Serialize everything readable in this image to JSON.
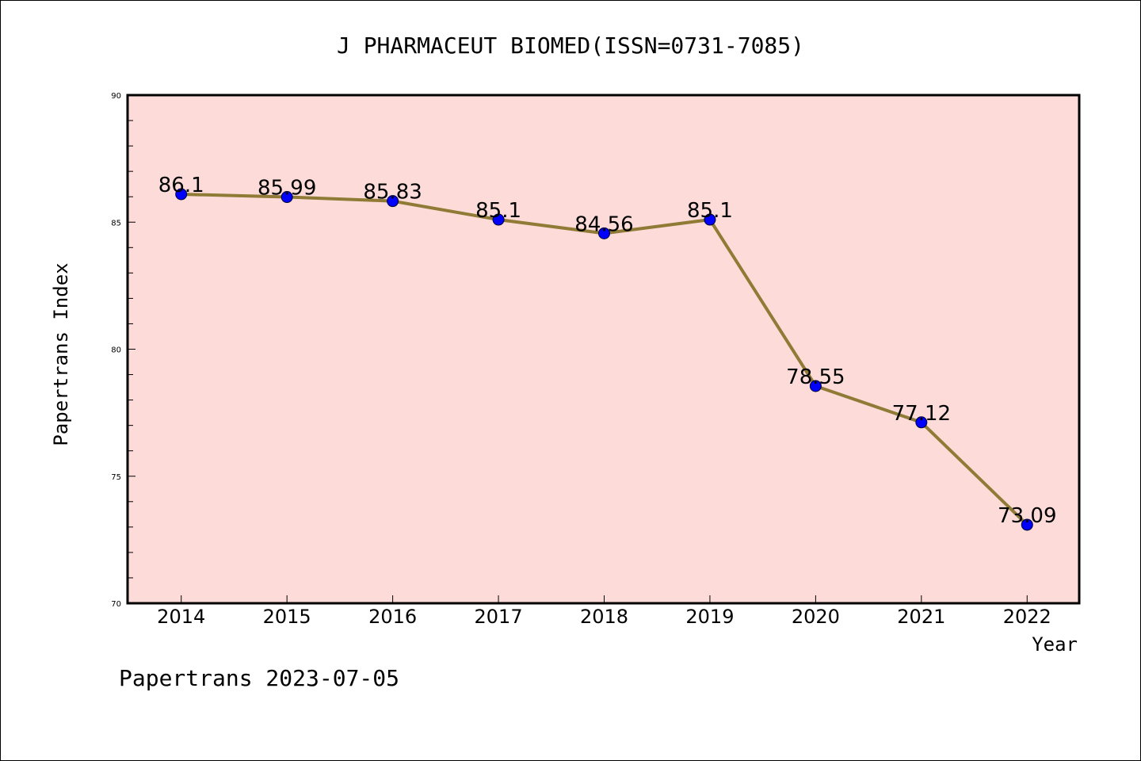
{
  "chart_data": {
    "type": "line",
    "title": "J PHARMACEUT BIOMED(ISSN=0731-7085)",
    "xlabel": "Year",
    "ylabel": "Papertrans Index",
    "categories": [
      "2014",
      "2015",
      "2016",
      "2017",
      "2018",
      "2019",
      "2020",
      "2021",
      "2022"
    ],
    "values": [
      86.1,
      85.99,
      85.83,
      85.1,
      84.56,
      85.1,
      78.55,
      77.12,
      73.09
    ],
    "data_labels": [
      "86.1",
      "85.99",
      "85.83",
      "85.1",
      "84.56",
      "85.1",
      "78.55",
      "77.12",
      "73.09"
    ],
    "ylim": [
      70,
      90
    ],
    "yticks": [
      "70",
      "75",
      "80",
      "85",
      "90"
    ],
    "yminor_step": 1,
    "grid": false,
    "plot_background": "#FDDBD8",
    "line_color": "#8F7A36",
    "marker_color": "#0000FF"
  },
  "footer": "Papertrans 2023-07-05"
}
